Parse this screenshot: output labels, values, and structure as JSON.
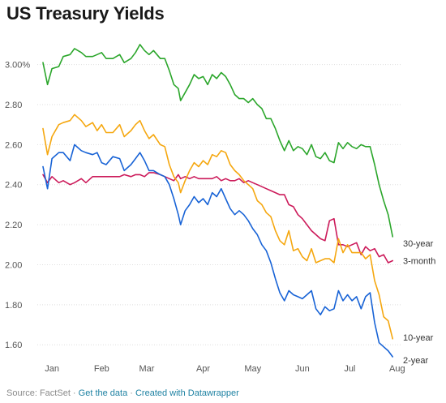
{
  "title": "US Treasury Yields",
  "footer": {
    "source": "Source: FactSet",
    "link_data": "Get the data",
    "link_created": "Created with Datawrapper",
    "separator": " · "
  },
  "colors": {
    "30-year": "#2ba62b",
    "10-year": "#f5a70f",
    "3-month": "#cc1a5a",
    "2-year": "#1863d6",
    "grid": "#dedede",
    "tick_text": "#555555"
  },
  "chart_data": {
    "type": "line",
    "title": "US Treasury Yields",
    "xlabel": "",
    "ylabel": "",
    "x_range": [
      1,
      157
    ],
    "x_ticks": [
      {
        "label": "Jan",
        "x": 5
      },
      {
        "label": "Feb",
        "x": 27
      },
      {
        "label": "Mar",
        "x": 47
      },
      {
        "label": "Apr",
        "x": 72
      },
      {
        "label": "May",
        "x": 94
      },
      {
        "label": "Jun",
        "x": 116
      },
      {
        "label": "Jul",
        "x": 137
      },
      {
        "label": "Aug",
        "x": 158
      }
    ],
    "ylim": [
      1.54,
      3.12
    ],
    "y_ticks": [
      1.6,
      1.8,
      2.0,
      2.2,
      2.4,
      2.6,
      2.8,
      3.0
    ],
    "y_tick_labels": [
      "1.60",
      "1.80",
      "2.00",
      "2.20",
      "2.40",
      "2.60",
      "2.80",
      "3.00%"
    ],
    "grid": true,
    "legend": "line-end labels",
    "series": [
      {
        "name": "30-year",
        "values": [
          [
            1,
            3.01
          ],
          [
            3,
            2.9
          ],
          [
            5,
            2.98
          ],
          [
            8,
            2.99
          ],
          [
            10,
            3.04
          ],
          [
            13,
            3.05
          ],
          [
            15,
            3.08
          ],
          [
            18,
            3.06
          ],
          [
            20,
            3.04
          ],
          [
            23,
            3.04
          ],
          [
            25,
            3.05
          ],
          [
            27,
            3.06
          ],
          [
            29,
            3.03
          ],
          [
            32,
            3.03
          ],
          [
            35,
            3.05
          ],
          [
            37,
            3.01
          ],
          [
            40,
            3.03
          ],
          [
            42,
            3.06
          ],
          [
            44,
            3.1
          ],
          [
            46,
            3.07
          ],
          [
            48,
            3.05
          ],
          [
            50,
            3.07
          ],
          [
            53,
            3.03
          ],
          [
            55,
            3.03
          ],
          [
            57,
            2.97
          ],
          [
            59,
            2.9
          ],
          [
            61,
            2.88
          ],
          [
            62,
            2.82
          ],
          [
            64,
            2.86
          ],
          [
            66,
            2.9
          ],
          [
            68,
            2.95
          ],
          [
            70,
            2.93
          ],
          [
            72,
            2.94
          ],
          [
            74,
            2.9
          ],
          [
            76,
            2.95
          ],
          [
            78,
            2.93
          ],
          [
            80,
            2.96
          ],
          [
            82,
            2.94
          ],
          [
            84,
            2.9
          ],
          [
            86,
            2.85
          ],
          [
            88,
            2.83
          ],
          [
            90,
            2.83
          ],
          [
            92,
            2.81
          ],
          [
            94,
            2.83
          ],
          [
            96,
            2.8
          ],
          [
            98,
            2.78
          ],
          [
            100,
            2.73
          ],
          [
            102,
            2.73
          ],
          [
            104,
            2.68
          ],
          [
            106,
            2.62
          ],
          [
            108,
            2.57
          ],
          [
            110,
            2.62
          ],
          [
            112,
            2.57
          ],
          [
            114,
            2.59
          ],
          [
            116,
            2.58
          ],
          [
            118,
            2.55
          ],
          [
            120,
            2.6
          ],
          [
            122,
            2.54
          ],
          [
            124,
            2.53
          ],
          [
            126,
            2.56
          ],
          [
            128,
            2.52
          ],
          [
            130,
            2.51
          ],
          [
            132,
            2.61
          ],
          [
            134,
            2.58
          ],
          [
            136,
            2.61
          ],
          [
            138,
            2.59
          ],
          [
            140,
            2.58
          ],
          [
            142,
            2.6
          ],
          [
            144,
            2.59
          ],
          [
            146,
            2.59
          ],
          [
            148,
            2.5
          ],
          [
            150,
            2.4
          ],
          [
            152,
            2.32
          ],
          [
            154,
            2.25
          ],
          [
            156,
            2.14
          ]
        ]
      },
      {
        "name": "10-year",
        "values": [
          [
            1,
            2.68
          ],
          [
            3,
            2.55
          ],
          [
            5,
            2.64
          ],
          [
            8,
            2.7
          ],
          [
            10,
            2.71
          ],
          [
            13,
            2.72
          ],
          [
            15,
            2.75
          ],
          [
            18,
            2.72
          ],
          [
            20,
            2.69
          ],
          [
            23,
            2.71
          ],
          [
            25,
            2.67
          ],
          [
            27,
            2.7
          ],
          [
            29,
            2.66
          ],
          [
            32,
            2.66
          ],
          [
            35,
            2.7
          ],
          [
            37,
            2.64
          ],
          [
            40,
            2.67
          ],
          [
            42,
            2.7
          ],
          [
            44,
            2.72
          ],
          [
            46,
            2.67
          ],
          [
            48,
            2.63
          ],
          [
            50,
            2.65
          ],
          [
            53,
            2.6
          ],
          [
            55,
            2.59
          ],
          [
            57,
            2.5
          ],
          [
            59,
            2.44
          ],
          [
            61,
            2.41
          ],
          [
            62,
            2.36
          ],
          [
            64,
            2.42
          ],
          [
            66,
            2.47
          ],
          [
            68,
            2.51
          ],
          [
            70,
            2.49
          ],
          [
            72,
            2.52
          ],
          [
            74,
            2.5
          ],
          [
            76,
            2.55
          ],
          [
            78,
            2.54
          ],
          [
            80,
            2.57
          ],
          [
            82,
            2.56
          ],
          [
            84,
            2.5
          ],
          [
            86,
            2.47
          ],
          [
            88,
            2.45
          ],
          [
            90,
            2.42
          ],
          [
            92,
            2.4
          ],
          [
            94,
            2.38
          ],
          [
            96,
            2.32
          ],
          [
            98,
            2.3
          ],
          [
            100,
            2.26
          ],
          [
            102,
            2.24
          ],
          [
            104,
            2.17
          ],
          [
            106,
            2.12
          ],
          [
            108,
            2.1
          ],
          [
            110,
            2.17
          ],
          [
            112,
            2.07
          ],
          [
            114,
            2.08
          ],
          [
            116,
            2.04
          ],
          [
            118,
            2.02
          ],
          [
            120,
            2.08
          ],
          [
            122,
            2.01
          ],
          [
            124,
            2.02
          ],
          [
            126,
            2.03
          ],
          [
            128,
            2.03
          ],
          [
            130,
            2.01
          ],
          [
            132,
            2.13
          ],
          [
            134,
            2.06
          ],
          [
            136,
            2.1
          ],
          [
            138,
            2.06
          ],
          [
            140,
            2.06
          ],
          [
            142,
            2.06
          ],
          [
            144,
            2.03
          ],
          [
            146,
            2.05
          ],
          [
            148,
            1.92
          ],
          [
            150,
            1.85
          ],
          [
            152,
            1.74
          ],
          [
            154,
            1.72
          ],
          [
            156,
            1.63
          ]
        ]
      },
      {
        "name": "3-month",
        "values": [
          [
            1,
            2.45
          ],
          [
            3,
            2.41
          ],
          [
            5,
            2.44
          ],
          [
            8,
            2.41
          ],
          [
            10,
            2.42
          ],
          [
            13,
            2.4
          ],
          [
            15,
            2.41
          ],
          [
            18,
            2.43
          ],
          [
            20,
            2.41
          ],
          [
            23,
            2.44
          ],
          [
            25,
            2.44
          ],
          [
            27,
            2.44
          ],
          [
            29,
            2.44
          ],
          [
            32,
            2.44
          ],
          [
            35,
            2.44
          ],
          [
            37,
            2.45
          ],
          [
            40,
            2.44
          ],
          [
            42,
            2.45
          ],
          [
            44,
            2.45
          ],
          [
            46,
            2.44
          ],
          [
            48,
            2.46
          ],
          [
            50,
            2.46
          ],
          [
            53,
            2.45
          ],
          [
            55,
            2.44
          ],
          [
            57,
            2.43
          ],
          [
            59,
            2.42
          ],
          [
            61,
            2.45
          ],
          [
            62,
            2.43
          ],
          [
            64,
            2.44
          ],
          [
            66,
            2.43
          ],
          [
            68,
            2.44
          ],
          [
            70,
            2.43
          ],
          [
            72,
            2.43
          ],
          [
            74,
            2.43
          ],
          [
            76,
            2.43
          ],
          [
            78,
            2.44
          ],
          [
            80,
            2.42
          ],
          [
            82,
            2.43
          ],
          [
            84,
            2.42
          ],
          [
            86,
            2.42
          ],
          [
            88,
            2.43
          ],
          [
            90,
            2.41
          ],
          [
            92,
            2.42
          ],
          [
            94,
            2.41
          ],
          [
            96,
            2.4
          ],
          [
            98,
            2.39
          ],
          [
            100,
            2.38
          ],
          [
            102,
            2.37
          ],
          [
            104,
            2.36
          ],
          [
            106,
            2.35
          ],
          [
            108,
            2.35
          ],
          [
            110,
            2.3
          ],
          [
            112,
            2.29
          ],
          [
            114,
            2.25
          ],
          [
            116,
            2.23
          ],
          [
            118,
            2.2
          ],
          [
            120,
            2.17
          ],
          [
            122,
            2.15
          ],
          [
            124,
            2.13
          ],
          [
            126,
            2.12
          ],
          [
            128,
            2.22
          ],
          [
            130,
            2.23
          ],
          [
            132,
            2.1
          ],
          [
            134,
            2.1
          ],
          [
            136,
            2.09
          ],
          [
            138,
            2.1
          ],
          [
            140,
            2.11
          ],
          [
            142,
            2.05
          ],
          [
            144,
            2.09
          ],
          [
            146,
            2.07
          ],
          [
            148,
            2.08
          ],
          [
            150,
            2.04
          ],
          [
            152,
            2.05
          ],
          [
            154,
            2.01
          ],
          [
            156,
            2.02
          ]
        ]
      },
      {
        "name": "2-year",
        "values": [
          [
            1,
            2.49
          ],
          [
            3,
            2.38
          ],
          [
            5,
            2.53
          ],
          [
            8,
            2.56
          ],
          [
            10,
            2.56
          ],
          [
            13,
            2.52
          ],
          [
            15,
            2.6
          ],
          [
            18,
            2.57
          ],
          [
            20,
            2.56
          ],
          [
            23,
            2.55
          ],
          [
            25,
            2.56
          ],
          [
            27,
            2.51
          ],
          [
            29,
            2.5
          ],
          [
            32,
            2.54
          ],
          [
            35,
            2.53
          ],
          [
            37,
            2.47
          ],
          [
            40,
            2.5
          ],
          [
            42,
            2.53
          ],
          [
            44,
            2.56
          ],
          [
            46,
            2.52
          ],
          [
            48,
            2.47
          ],
          [
            50,
            2.47
          ],
          [
            53,
            2.45
          ],
          [
            55,
            2.44
          ],
          [
            57,
            2.4
          ],
          [
            59,
            2.33
          ],
          [
            61,
            2.25
          ],
          [
            62,
            2.2
          ],
          [
            64,
            2.27
          ],
          [
            66,
            2.3
          ],
          [
            68,
            2.34
          ],
          [
            70,
            2.31
          ],
          [
            72,
            2.33
          ],
          [
            74,
            2.3
          ],
          [
            76,
            2.36
          ],
          [
            78,
            2.34
          ],
          [
            80,
            2.38
          ],
          [
            82,
            2.33
          ],
          [
            84,
            2.28
          ],
          [
            86,
            2.25
          ],
          [
            88,
            2.27
          ],
          [
            90,
            2.25
          ],
          [
            92,
            2.22
          ],
          [
            94,
            2.18
          ],
          [
            96,
            2.15
          ],
          [
            98,
            2.1
          ],
          [
            100,
            2.07
          ],
          [
            102,
            2.01
          ],
          [
            104,
            1.93
          ],
          [
            106,
            1.86
          ],
          [
            108,
            1.82
          ],
          [
            110,
            1.87
          ],
          [
            112,
            1.85
          ],
          [
            114,
            1.84
          ],
          [
            116,
            1.83
          ],
          [
            118,
            1.85
          ],
          [
            120,
            1.87
          ],
          [
            122,
            1.78
          ],
          [
            124,
            1.75
          ],
          [
            126,
            1.79
          ],
          [
            128,
            1.77
          ],
          [
            130,
            1.78
          ],
          [
            132,
            1.87
          ],
          [
            134,
            1.82
          ],
          [
            136,
            1.85
          ],
          [
            138,
            1.82
          ],
          [
            140,
            1.84
          ],
          [
            142,
            1.78
          ],
          [
            144,
            1.84
          ],
          [
            146,
            1.86
          ],
          [
            148,
            1.71
          ],
          [
            150,
            1.61
          ],
          [
            152,
            1.59
          ],
          [
            154,
            1.57
          ],
          [
            156,
            1.54
          ]
        ]
      }
    ]
  }
}
